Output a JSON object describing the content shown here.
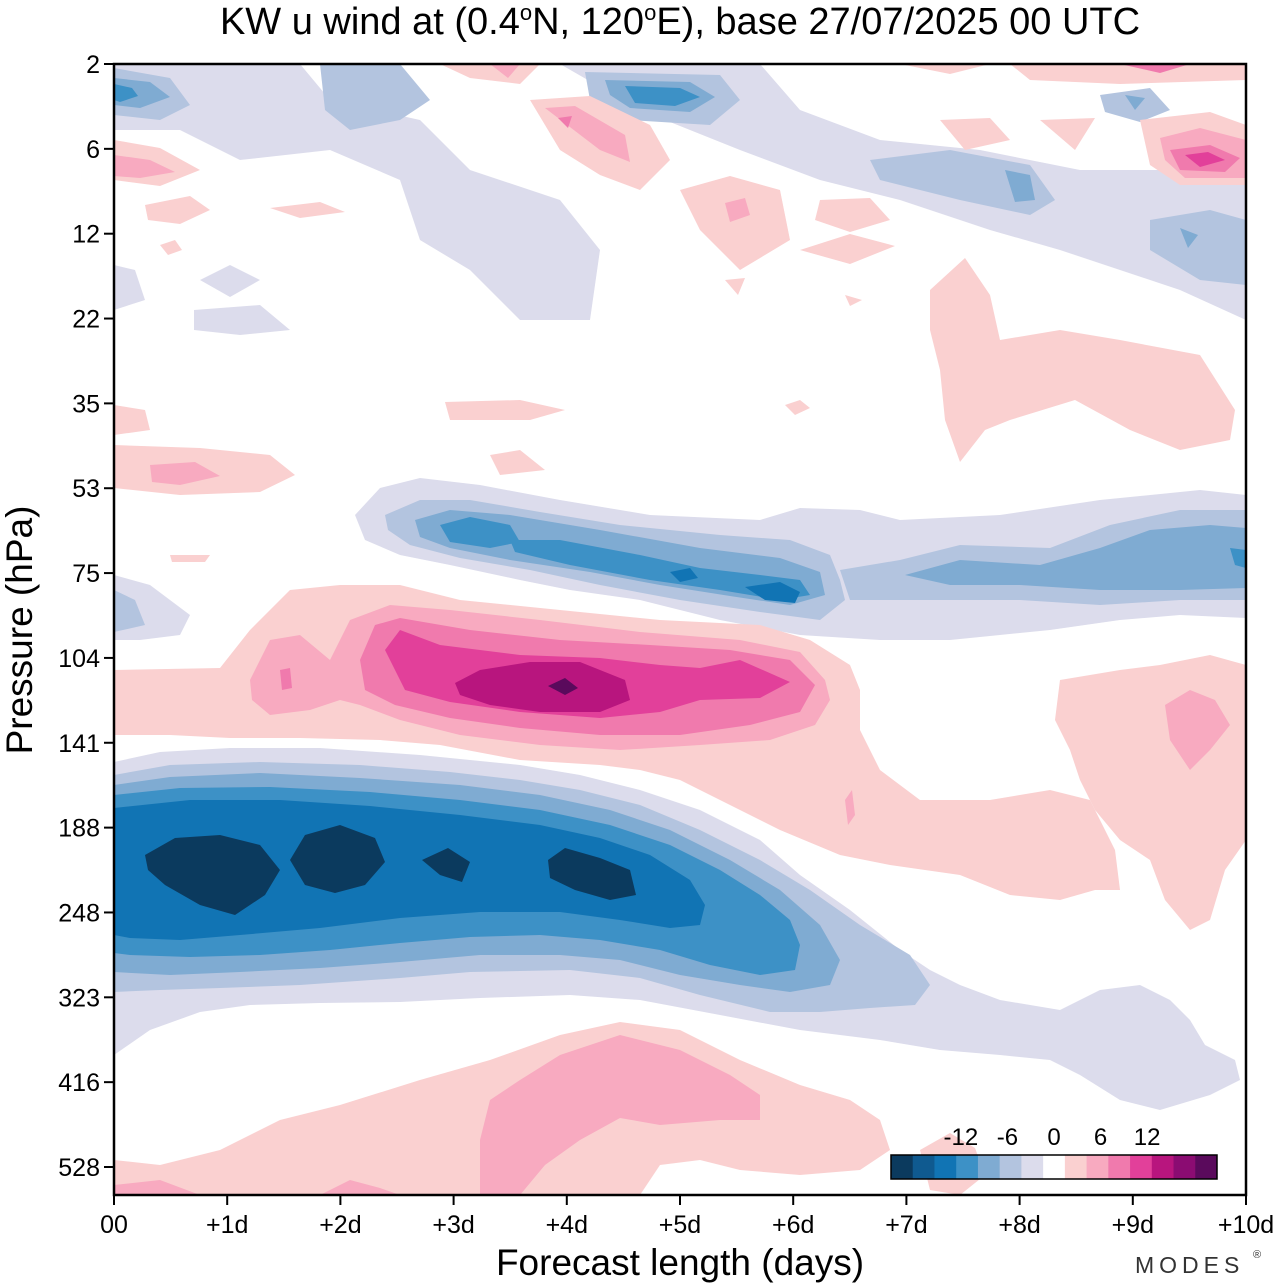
{
  "chart_data": {
    "type": "heatmap",
    "title": "KW u wind at (0.4°N, 120°E),  base 27/07/2025  00 UTC",
    "title_parts": {
      "prefix": "KW u wind at (0.4",
      "deg1": "o",
      "mid": "N, 120",
      "deg2": "o",
      "suffix": "E),  base 27/07/2025  00 UTC"
    },
    "xlabel": "Forecast length (days)",
    "ylabel": "Pressure (hPa)",
    "x_ticks": [
      "00",
      "+1d",
      "+2d",
      "+3d",
      "+4d",
      "+5d",
      "+6d",
      "+7d",
      "+8d",
      "+9d",
      "+10d"
    ],
    "xlim": [
      0,
      10
    ],
    "y_ticks": [
      "2",
      "6",
      "12",
      "22",
      "35",
      "53",
      "75",
      "104",
      "141",
      "188",
      "248",
      "323",
      "416",
      "528"
    ],
    "y_scale": "pressure levels, log-like, top = 2 hPa",
    "colorbar": {
      "tick_labels": [
        "-12",
        "-6",
        "0",
        "6",
        "12"
      ],
      "colors": [
        "#0b3a5e",
        "#0f5a90",
        "#1174b4",
        "#3d91c6",
        "#7fabd2",
        "#b3c4df",
        "#dcdcec",
        "#ffffff",
        "#fad0d0",
        "#f8aac0",
        "#f07aad",
        "#e2409a",
        "#b8157e",
        "#8b0c72",
        "#5a0a5c"
      ]
    },
    "features": [
      {
        "name": "easterly jet upper troposphere",
        "sign": "negative",
        "min_value": -12,
        "days": [
          0,
          6.5
        ],
        "pressure_hPa": [
          141,
          400
        ]
      },
      {
        "name": "westerly max lower stratosphere",
        "sign": "positive",
        "max_value": 12,
        "days": [
          1.3,
          6.5
        ],
        "pressure_hPa": [
          85,
          150
        ]
      },
      {
        "name": "easterly band stratosphere",
        "sign": "negative",
        "min_value": -9,
        "days": [
          2.2,
          10
        ],
        "pressure_hPa": [
          53,
          90
        ]
      },
      {
        "name": "westerly band lower troposphere",
        "sign": "positive",
        "max_value": 4,
        "days": [
          0,
          7.5
        ],
        "pressure_hPa": [
          380,
          600
        ]
      }
    ]
  },
  "brand": "MODES",
  "brand_mark": "®"
}
